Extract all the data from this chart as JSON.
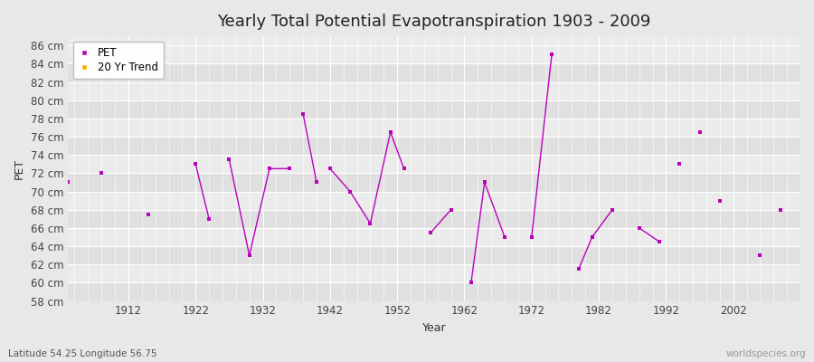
{
  "title": "Yearly Total Potential Evapotranspiration 1903 - 2009",
  "xlabel": "Year",
  "ylabel": "PET",
  "subtitle": "Latitude 54.25 Longitude 56.75",
  "watermark": "worldspecies.org",
  "pet_color": "#bb00bb",
  "trend_color": "#FFA500",
  "ylim": [
    58,
    87
  ],
  "yticks": [
    58,
    60,
    62,
    64,
    66,
    68,
    70,
    72,
    74,
    76,
    78,
    80,
    82,
    84,
    86
  ],
  "xtick_years": [
    1912,
    1922,
    1932,
    1942,
    1952,
    1962,
    1972,
    1982,
    1992,
    2002
  ],
  "xlim": [
    1903,
    2012
  ],
  "bg_color": "#e8e8e8",
  "plot_bg": "#ebebeb",
  "stripe_colors": [
    "#e0e0e0",
    "#ebebeb"
  ],
  "grid_color": "#ffffff",
  "title_fontsize": 13,
  "axis_fontsize": 8.5,
  "label_fontsize": 9,
  "connected_lines": [
    [
      [
        1922,
        73.0
      ],
      [
        1924,
        67.0
      ]
    ],
    [
      [
        1927,
        73.5
      ],
      [
        1930,
        63.0
      ],
      [
        1933,
        72.5
      ],
      [
        1936,
        72.5
      ]
    ],
    [
      [
        1938,
        78.5
      ],
      [
        1940,
        71.0
      ]
    ],
    [
      [
        1942,
        72.5
      ],
      [
        1945,
        70.0
      ],
      [
        1948,
        66.5
      ],
      [
        1951,
        76.5
      ],
      [
        1953,
        72.5
      ]
    ],
    [
      [
        1957,
        65.5
      ],
      [
        1960,
        68.0
      ]
    ],
    [
      [
        1963,
        60.0
      ],
      [
        1965,
        71.0
      ],
      [
        1968,
        65.0
      ]
    ],
    [
      [
        1972,
        65.0
      ],
      [
        1975,
        85.0
      ]
    ],
    [
      [
        1979,
        61.5
      ],
      [
        1981,
        65.0
      ],
      [
        1984,
        68.0
      ]
    ],
    [
      [
        1988,
        66.0
      ],
      [
        1991,
        64.5
      ]
    ]
  ],
  "isolated_dots": [
    [
      1903,
      71.0
    ],
    [
      1908,
      72.0
    ],
    [
      1915,
      67.5
    ],
    [
      1994,
      73.0
    ],
    [
      1997,
      76.5
    ],
    [
      2000,
      69.0
    ],
    [
      2006,
      63.0
    ],
    [
      2009,
      68.0
    ]
  ]
}
